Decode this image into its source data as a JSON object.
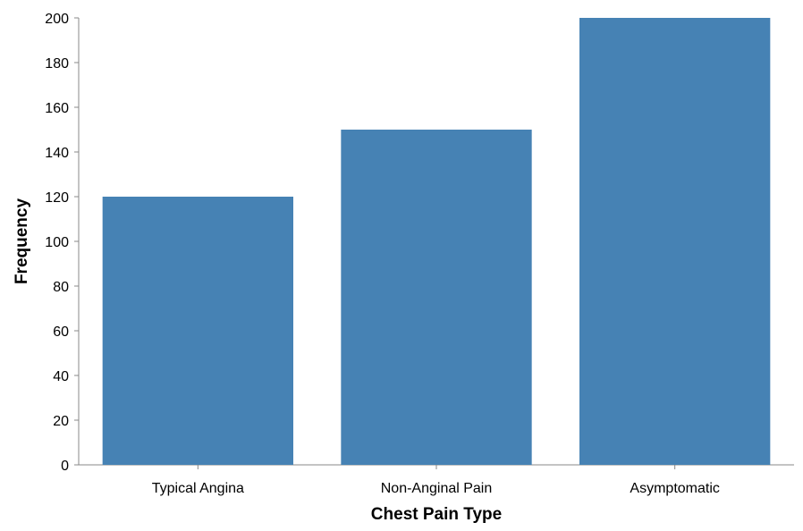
{
  "chart_data": {
    "type": "bar",
    "categories": [
      "Typical Angina",
      "Non-Anginal Pain",
      "Asymptomatic"
    ],
    "values": [
      120,
      150,
      200
    ],
    "title": "",
    "xlabel": "Chest Pain Type",
    "ylabel": "Frequency",
    "ylim": [
      0,
      200
    ],
    "yticks": [
      0,
      20,
      40,
      60,
      80,
      100,
      120,
      140,
      160,
      180,
      200
    ],
    "grid": false,
    "bar_color": "#4682b4"
  }
}
